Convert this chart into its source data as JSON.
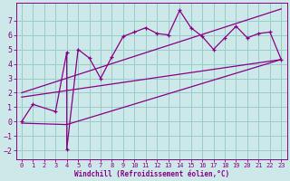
{
  "xlabel": "Windchill (Refroidissement éolien,°C)",
  "bg_color": "#cce8e8",
  "line_color": "#880088",
  "grid_color": "#99cccc",
  "xlim": [
    -0.5,
    23.5
  ],
  "ylim": [
    -2.6,
    8.2
  ],
  "xticks": [
    0,
    1,
    2,
    3,
    4,
    5,
    6,
    7,
    8,
    9,
    10,
    11,
    12,
    13,
    14,
    15,
    16,
    17,
    18,
    19,
    20,
    21,
    22,
    23
  ],
  "yticks": [
    -2,
    -1,
    0,
    1,
    2,
    3,
    4,
    5,
    6,
    7
  ],
  "curve1_x": [
    0,
    1,
    3,
    4,
    4,
    5,
    6,
    7,
    8,
    9,
    10,
    11,
    12,
    13,
    14,
    15,
    16,
    17,
    18,
    19,
    20,
    21,
    22,
    23
  ],
  "curve1_y": [
    0,
    1.2,
    0.7,
    4.8,
    -1.9,
    5.0,
    4.4,
    3.0,
    4.5,
    5.9,
    6.2,
    6.5,
    6.1,
    6.0,
    7.7,
    6.5,
    5.9,
    5.0,
    5.8,
    6.6,
    5.8,
    6.1,
    6.2,
    4.3
  ],
  "line1_x": [
    0,
    4,
    23
  ],
  "line1_y": [
    -0.1,
    -0.2,
    4.3
  ],
  "line2_x": [
    0,
    23
  ],
  "line2_y": [
    1.7,
    4.3
  ],
  "line3_x": [
    0,
    23
  ],
  "line3_y": [
    2.0,
    7.8
  ]
}
